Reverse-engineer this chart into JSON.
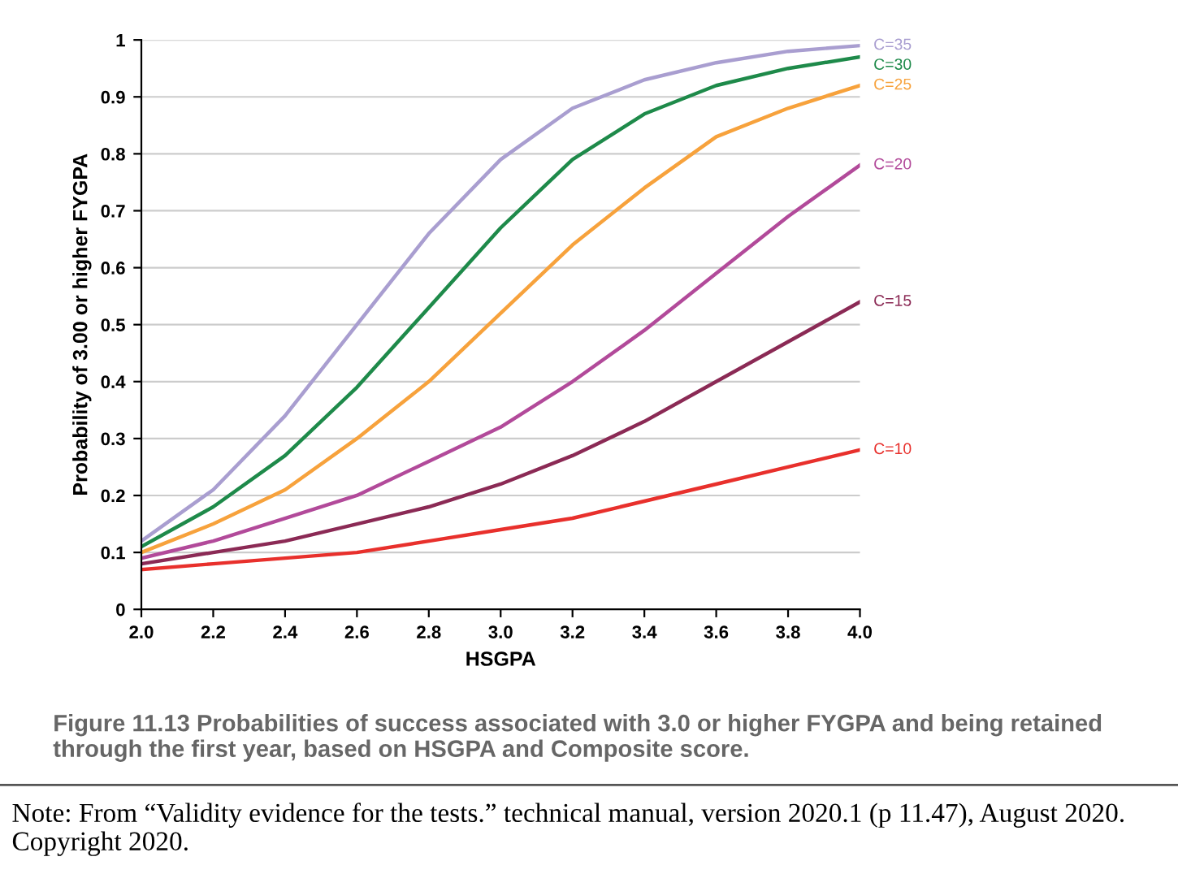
{
  "chart_data": {
    "type": "line",
    "title": "Figure 11.13 Probabilities of success associated with 3.0 or higher FYGPA and being retained through the first year, based on HSGPA and Composite score.",
    "xlabel": "HSGPA",
    "ylabel": "Probability of 3.00 or higher FYGPA",
    "x": [
      2.0,
      2.2,
      2.4,
      2.6,
      2.8,
      3.0,
      3.2,
      3.4,
      3.6,
      3.8,
      4.0
    ],
    "series": [
      {
        "name": "C=35",
        "color": "#a99ed0",
        "values": [
          0.12,
          0.21,
          0.34,
          0.5,
          0.66,
          0.79,
          0.88,
          0.93,
          0.96,
          0.98,
          0.99
        ]
      },
      {
        "name": "C=30",
        "color": "#1e8a4a",
        "values": [
          0.11,
          0.18,
          0.27,
          0.39,
          0.53,
          0.67,
          0.79,
          0.87,
          0.92,
          0.95,
          0.97
        ]
      },
      {
        "name": "C=25",
        "color": "#f7a23c",
        "values": [
          0.1,
          0.15,
          0.21,
          0.3,
          0.4,
          0.52,
          0.64,
          0.74,
          0.83,
          0.88,
          0.92
        ]
      },
      {
        "name": "C=20",
        "color": "#b24a9a",
        "values": [
          0.09,
          0.12,
          0.16,
          0.2,
          0.26,
          0.32,
          0.4,
          0.49,
          0.59,
          0.69,
          0.78
        ]
      },
      {
        "name": "C=15",
        "color": "#8b2a55",
        "values": [
          0.08,
          0.1,
          0.12,
          0.15,
          0.18,
          0.22,
          0.27,
          0.33,
          0.4,
          0.47,
          0.54
        ]
      },
      {
        "name": "C=10",
        "color": "#e8302c",
        "values": [
          0.07,
          0.08,
          0.09,
          0.1,
          0.12,
          0.14,
          0.16,
          0.19,
          0.22,
          0.25,
          0.28
        ]
      }
    ],
    "xlim": [
      2.0,
      4.0
    ],
    "xticks": [
      {
        "value": 2.0,
        "label": "2.0"
      },
      {
        "value": 2.2,
        "label": "2.2"
      },
      {
        "value": 2.4,
        "label": "2.4"
      },
      {
        "value": 2.6,
        "label": "2.6"
      },
      {
        "value": 2.8,
        "label": "2.8"
      },
      {
        "value": 3.0,
        "label": "3.0"
      },
      {
        "value": 3.2,
        "label": "3.2"
      },
      {
        "value": 3.4,
        "label": "3.4"
      },
      {
        "value": 3.6,
        "label": "3.6"
      },
      {
        "value": 3.8,
        "label": "3.8"
      },
      {
        "value": 4.0,
        "label": "4.0"
      }
    ],
    "ylim": [
      0,
      1
    ],
    "yticks": [
      0,
      0.1,
      0.2,
      0.3,
      0.4,
      0.5,
      0.6,
      0.7,
      0.8,
      0.9,
      1
    ],
    "grid": "y",
    "legend": false,
    "marker": "none",
    "line_style": "solid",
    "annotations": [
      "Note: From “Validity evidence for the tests.” technical manual, version 2020.1 (p 11.47), August 2020. Copyright 2020."
    ]
  }
}
